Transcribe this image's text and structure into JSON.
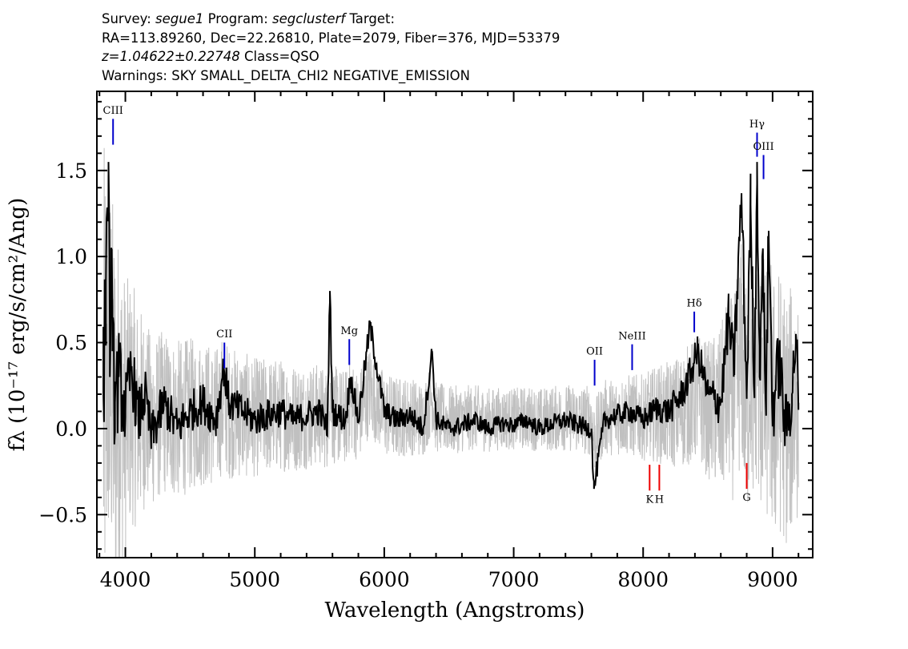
{
  "header": {
    "survey_label": "Survey:",
    "survey": "segue1",
    "program_label": "Program:",
    "program": "segclusterf",
    "target_label": "Target:",
    "coords": "RA=113.89260, Dec=22.26810, Plate=2079, Fiber=376, MJD=53379",
    "redshift": "z=1.04622±0.22748",
    "class": "Class=QSO",
    "warnings": "Warnings: SKY SMALL_DELTA_CHI2 NEGATIVE_EMISSION"
  },
  "chart_data": {
    "type": "line",
    "xlabel": "Wavelength (Angstroms)",
    "ylabel": "fλ (10⁻¹⁷ erg/s/cm²/Ang)",
    "xlim": [
      3780,
      9310
    ],
    "ylim": [
      -0.75,
      1.96
    ],
    "xticks": [
      4000,
      5000,
      6000,
      7000,
      8000,
      9000
    ],
    "xtick_labels": [
      "4000",
      "5000",
      "6000",
      "7000",
      "8000",
      "9000"
    ],
    "yticks": [
      -0.5,
      0.0,
      0.5,
      1.0,
      1.5
    ],
    "ytick_labels": [
      "−0.5",
      "0.0",
      "0.5",
      "1.0",
      "1.5"
    ],
    "grid": false,
    "colors": {
      "flux": "#000000",
      "error": "#c0c0c0",
      "emission": "#0000cc",
      "absorption": "#ee0000"
    },
    "series": [
      {
        "role": "flux",
        "x": [
          3830,
          3850,
          3870,
          3880,
          3890,
          3900,
          3920,
          3950,
          4000,
          4050,
          4100,
          4150,
          4200,
          4300,
          4400,
          4500,
          4600,
          4700,
          4760,
          4800,
          4900,
          5000,
          5100,
          5200,
          5300,
          5400,
          5500,
          5560,
          5580,
          5600,
          5700,
          5740,
          5800,
          5890,
          6000,
          6100,
          6200,
          6300,
          6370,
          6400,
          6500,
          6600,
          6700,
          6800,
          6900,
          7000,
          7100,
          7200,
          7300,
          7400,
          7500,
          7600,
          7620,
          7700,
          7800,
          7900,
          8000,
          8100,
          8200,
          8300,
          8380,
          8420,
          8500,
          8600,
          8660,
          8700,
          8760,
          8800,
          8830,
          8860,
          8880,
          8900,
          8920,
          8950,
          8970,
          9000,
          9050,
          9100,
          9150,
          9180,
          9200
        ],
        "y": [
          0.2,
          0.85,
          1.55,
          0.3,
          1.05,
          0.45,
          0.15,
          0.3,
          0.1,
          0.35,
          0.05,
          0.2,
          -0.05,
          0.15,
          0.0,
          0.1,
          0.15,
          0.05,
          0.35,
          0.15,
          0.1,
          0.05,
          0.08,
          0.1,
          0.05,
          0.08,
          0.1,
          0.0,
          0.8,
          0.1,
          0.05,
          0.3,
          0.05,
          0.6,
          0.1,
          0.05,
          0.08,
          0.0,
          0.45,
          0.05,
          0.0,
          0.02,
          0.05,
          0.0,
          0.03,
          0.02,
          0.05,
          0.0,
          0.03,
          0.05,
          0.02,
          0.0,
          -0.35,
          0.05,
          0.08,
          0.1,
          0.05,
          0.12,
          0.1,
          0.2,
          0.35,
          0.45,
          0.2,
          0.15,
          0.65,
          0.35,
          1.35,
          0.2,
          1.3,
          0.25,
          1.55,
          0.3,
          1.0,
          0.2,
          1.15,
          0.1,
          0.4,
          0.0,
          0.2,
          0.55,
          0.15
        ]
      },
      {
        "role": "error",
        "x": [
          3830,
          3900,
          4000,
          4200,
          4500,
          5000,
          5500,
          6000,
          6500,
          7000,
          7500,
          8000,
          8500,
          8800,
          9000,
          9200
        ],
        "y": [
          1.5,
          1.2,
          0.8,
          0.5,
          0.45,
          0.35,
          0.3,
          0.25,
          0.2,
          0.18,
          0.2,
          0.25,
          0.4,
          0.7,
          0.8,
          0.7
        ]
      }
    ],
    "line_markers": [
      {
        "label": "CIII",
        "wavelength": 3905,
        "y_bottom": 1.65,
        "y_top": 1.8,
        "label_y": 1.83,
        "kind": "emission"
      },
      {
        "label": "CII",
        "wavelength": 4765,
        "y_bottom": 0.35,
        "y_top": 0.5,
        "label_y": 0.53,
        "kind": "emission"
      },
      {
        "label": "Mg",
        "wavelength": 5730,
        "y_bottom": 0.37,
        "y_top": 0.52,
        "label_y": 0.55,
        "kind": "emission"
      },
      {
        "label": "OII",
        "wavelength": 7625,
        "y_bottom": 0.25,
        "y_top": 0.4,
        "label_y": 0.43,
        "kind": "emission"
      },
      {
        "label": "NeIII",
        "wavelength": 7915,
        "y_bottom": 0.34,
        "y_top": 0.49,
        "label_y": 0.52,
        "kind": "emission"
      },
      {
        "label": "Hδ",
        "wavelength": 8395,
        "y_bottom": 0.56,
        "y_top": 0.68,
        "label_y": 0.71,
        "kind": "emission"
      },
      {
        "label": "Hγ",
        "wavelength": 8880,
        "y_bottom": 1.58,
        "y_top": 1.72,
        "label_y": 1.75,
        "kind": "emission"
      },
      {
        "label": "OIII",
        "wavelength": 8930,
        "y_bottom": 1.45,
        "y_top": 1.59,
        "label_y": 1.62,
        "kind": "emission"
      },
      {
        "label": "K",
        "wavelength": 8050,
        "y_bottom": -0.36,
        "y_top": -0.21,
        "label_y": -0.43,
        "kind": "absorption"
      },
      {
        "label": "H",
        "wavelength": 8125,
        "y_bottom": -0.36,
        "y_top": -0.21,
        "label_y": -0.43,
        "kind": "absorption"
      },
      {
        "label": "G",
        "wavelength": 8800,
        "y_bottom": -0.35,
        "y_top": -0.2,
        "label_y": -0.42,
        "kind": "absorption"
      }
    ]
  }
}
